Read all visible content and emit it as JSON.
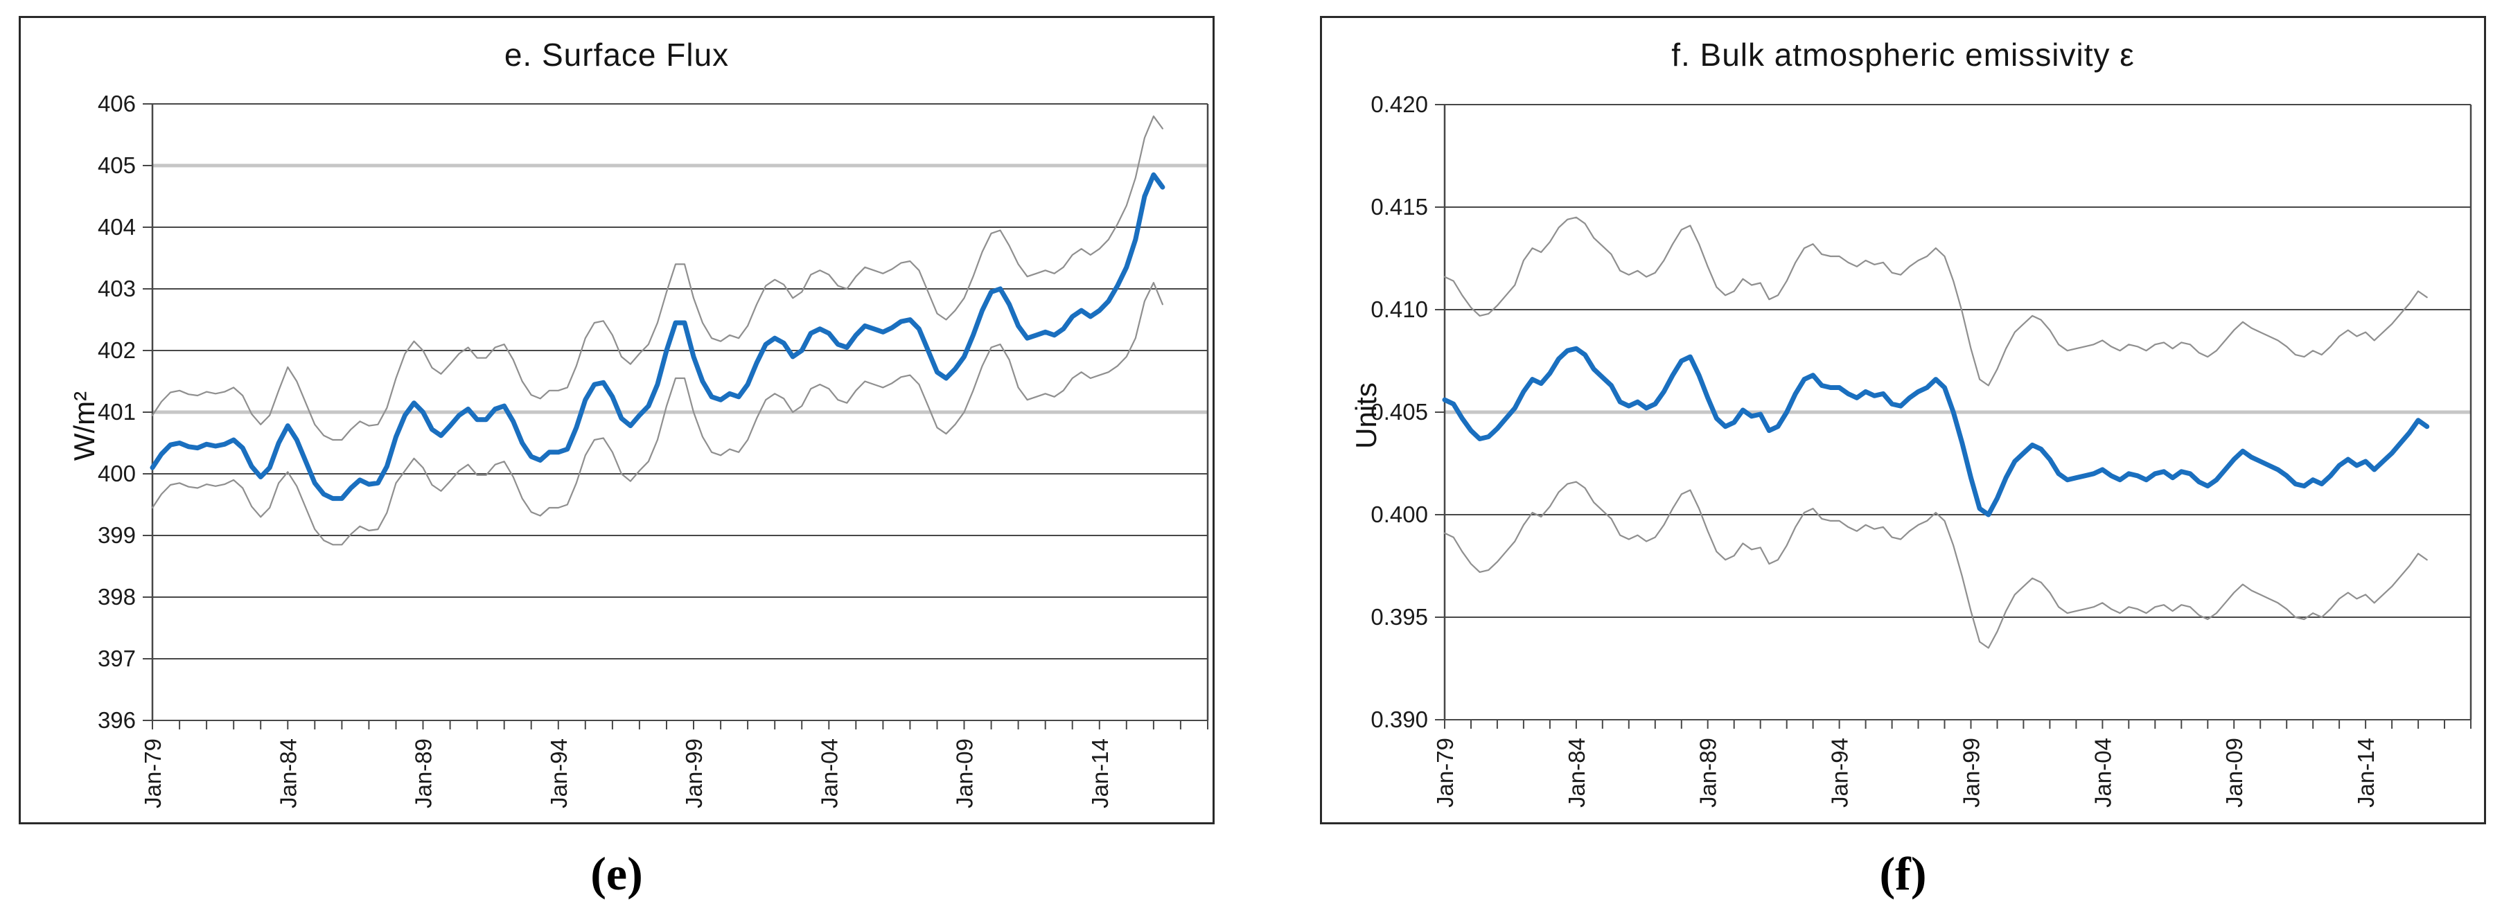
{
  "page": {
    "background": "#ffffff"
  },
  "chart_data": [
    {
      "id": "e",
      "type": "line",
      "title": "e. Surface Flux",
      "ylabel": "W/m²",
      "caption": "(e)",
      "ylim": [
        396,
        406
      ],
      "ytick_step": 1,
      "ytick_labels": [
        "406",
        "405",
        "404",
        "403",
        "402",
        "401",
        "400",
        "399",
        "398",
        "397",
        "396"
      ],
      "emphasis_gridlines": [
        405,
        401
      ],
      "grid_color": "#474747",
      "grid_emphasis_color": "#c6c6c6",
      "xlim": [
        1979,
        2018
      ],
      "minor_tick_every_years": 1,
      "xticks": [
        {
          "year": 1979,
          "label": "Jan-79"
        },
        {
          "year": 1984,
          "label": "Jan-84"
        },
        {
          "year": 1989,
          "label": "Jan-89"
        },
        {
          "year": 1994,
          "label": "Jan-94"
        },
        {
          "year": 1999,
          "label": "Jan-99"
        },
        {
          "year": 2004,
          "label": "Jan-04"
        },
        {
          "year": 2009,
          "label": "Jan-09"
        },
        {
          "year": 2014,
          "label": "Jan-14"
        }
      ],
      "x_start": 1979.0,
      "x_step": 0.33333,
      "series": [
        {
          "name": "upper uncertainty bound",
          "slug": "upper-bound",
          "color": "#8f8f8f",
          "width": 2.2,
          "values": [
            400.95,
            401.17,
            401.32,
            401.35,
            401.29,
            401.27,
            401.33,
            401.3,
            401.33,
            401.4,
            401.27,
            400.97,
            400.8,
            400.95,
            401.35,
            401.73,
            401.5,
            401.15,
            400.8,
            400.62,
            400.55,
            400.55,
            400.72,
            400.85,
            400.78,
            400.8,
            401.07,
            401.55,
            401.95,
            402.15,
            402.0,
            401.72,
            401.62,
            401.78,
            401.95,
            402.05,
            401.88,
            401.88,
            402.05,
            402.1,
            401.85,
            401.5,
            401.28,
            401.22,
            401.35,
            401.35,
            401.4,
            401.75,
            402.2,
            402.45,
            402.48,
            402.25,
            401.9,
            401.78,
            401.95,
            402.1,
            402.45,
            402.95,
            403.4,
            403.4,
            402.85,
            402.45,
            402.2,
            402.15,
            402.25,
            402.2,
            402.4,
            402.75,
            403.05,
            403.15,
            403.07,
            402.85,
            402.95,
            403.23,
            403.3,
            403.23,
            403.05,
            403.0,
            403.2,
            403.35,
            403.3,
            403.25,
            403.32,
            403.42,
            403.45,
            403.3,
            402.95,
            402.6,
            402.5,
            402.65,
            402.85,
            403.2,
            403.6,
            403.9,
            403.95,
            403.7,
            403.4,
            403.2,
            403.25,
            403.3,
            403.25,
            403.35,
            403.55,
            403.65,
            403.55,
            403.65,
            403.8,
            404.05,
            404.35,
            404.8,
            405.45,
            405.8,
            405.6
          ]
        },
        {
          "name": "lower uncertainty bound",
          "slug": "lower-bound",
          "color": "#8f8f8f",
          "width": 2.2,
          "values": [
            399.45,
            399.67,
            399.82,
            399.85,
            399.79,
            399.77,
            399.83,
            399.8,
            399.83,
            399.9,
            399.77,
            399.47,
            399.3,
            399.45,
            399.85,
            400.03,
            399.8,
            399.45,
            399.1,
            398.92,
            398.85,
            398.85,
            399.02,
            399.15,
            399.08,
            399.1,
            399.37,
            399.85,
            400.05,
            400.25,
            400.1,
            399.82,
            399.72,
            399.88,
            400.05,
            400.15,
            399.98,
            399.98,
            400.15,
            400.2,
            399.95,
            399.6,
            399.38,
            399.32,
            399.45,
            399.45,
            399.5,
            399.85,
            400.3,
            400.55,
            400.58,
            400.35,
            400.0,
            399.88,
            400.05,
            400.2,
            400.55,
            401.1,
            401.55,
            401.55,
            401.0,
            400.6,
            400.35,
            400.3,
            400.4,
            400.35,
            400.55,
            400.9,
            401.2,
            401.3,
            401.22,
            401.0,
            401.1,
            401.38,
            401.45,
            401.38,
            401.2,
            401.15,
            401.35,
            401.5,
            401.45,
            401.4,
            401.47,
            401.57,
            401.6,
            401.45,
            401.1,
            400.75,
            400.65,
            400.8,
            401.0,
            401.35,
            401.75,
            402.05,
            402.1,
            401.85,
            401.4,
            401.2,
            401.25,
            401.3,
            401.25,
            401.35,
            401.55,
            401.65,
            401.55,
            401.6,
            401.65,
            401.75,
            401.9,
            402.2,
            402.8,
            403.1,
            402.75
          ]
        },
        {
          "name": "surface flux central estimate",
          "slug": "main",
          "color": "#1a6fbf",
          "width": 7,
          "values": [
            400.1,
            400.32,
            400.47,
            400.5,
            400.44,
            400.42,
            400.48,
            400.45,
            400.48,
            400.55,
            400.42,
            400.12,
            399.95,
            400.1,
            400.5,
            400.78,
            400.55,
            400.2,
            399.85,
            399.67,
            399.6,
            399.6,
            399.77,
            399.9,
            399.83,
            399.85,
            400.12,
            400.6,
            400.95,
            401.15,
            401.0,
            400.72,
            400.62,
            400.78,
            400.95,
            401.05,
            400.88,
            400.88,
            401.05,
            401.1,
            400.85,
            400.5,
            400.28,
            400.22,
            400.35,
            400.35,
            400.4,
            400.75,
            401.2,
            401.45,
            401.48,
            401.25,
            400.9,
            400.78,
            400.95,
            401.1,
            401.45,
            402.0,
            402.45,
            402.45,
            401.9,
            401.5,
            401.25,
            401.2,
            401.3,
            401.25,
            401.45,
            401.8,
            402.1,
            402.2,
            402.12,
            401.9,
            402.0,
            402.28,
            402.35,
            402.28,
            402.1,
            402.05,
            402.25,
            402.4,
            402.35,
            402.3,
            402.37,
            402.47,
            402.5,
            402.35,
            402.0,
            401.65,
            401.55,
            401.7,
            401.9,
            402.25,
            402.65,
            402.95,
            403.0,
            402.75,
            402.4,
            402.2,
            402.25,
            402.3,
            402.25,
            402.35,
            402.55,
            402.65,
            402.55,
            402.65,
            402.8,
            403.05,
            403.35,
            403.8,
            404.5,
            404.85,
            404.65
          ]
        }
      ]
    },
    {
      "id": "f",
      "type": "line",
      "title": "f. Bulk atmospheric emissivity ε",
      "ylabel": "Units",
      "caption": "(f)",
      "ylim": [
        0.39,
        0.42
      ],
      "ytick_step": 0.005,
      "ytick_labels": [
        "0.420",
        "0.415",
        "0.410",
        "0.405",
        "0.400",
        "0.395",
        "0.390"
      ],
      "emphasis_gridlines": [
        0.405
      ],
      "grid_color": "#474747",
      "grid_emphasis_color": "#c6c6c6",
      "xlim": [
        1979,
        2018
      ],
      "minor_tick_every_years": 1,
      "xticks": [
        {
          "year": 1979,
          "label": "Jan-79"
        },
        {
          "year": 1984,
          "label": "Jan-84"
        },
        {
          "year": 1989,
          "label": "Jan-89"
        },
        {
          "year": 1994,
          "label": "Jan-94"
        },
        {
          "year": 1999,
          "label": "Jan-99"
        },
        {
          "year": 2004,
          "label": "Jan-04"
        },
        {
          "year": 2009,
          "label": "Jan-09"
        },
        {
          "year": 2014,
          "label": "Jan-14"
        }
      ],
      "x_start": 1979.0,
      "x_step": 0.33333,
      "series": [
        {
          "name": "upper uncertainty bound",
          "slug": "upper-bound",
          "color": "#8f8f8f",
          "width": 2.2,
          "values": [
            0.4116,
            0.4114,
            0.4107,
            0.4101,
            0.4097,
            0.4098,
            0.4102,
            0.4107,
            0.4112,
            0.4124,
            0.413,
            0.4128,
            0.4133,
            0.414,
            0.4144,
            0.4145,
            0.4142,
            0.4135,
            0.4131,
            0.4127,
            0.4119,
            0.4117,
            0.4119,
            0.4116,
            0.4118,
            0.4124,
            0.4132,
            0.4139,
            0.4141,
            0.4132,
            0.4121,
            0.4111,
            0.4107,
            0.4109,
            0.4115,
            0.4112,
            0.4113,
            0.4105,
            0.4107,
            0.4114,
            0.4123,
            0.413,
            0.4132,
            0.4127,
            0.4126,
            0.4126,
            0.4123,
            0.4121,
            0.4124,
            0.4122,
            0.4123,
            0.4118,
            0.4117,
            0.4121,
            0.4124,
            0.4126,
            0.413,
            0.4126,
            0.4114,
            0.4099,
            0.4081,
            0.4066,
            0.4063,
            0.4071,
            0.4081,
            0.4089,
            0.4093,
            0.4097,
            0.4095,
            0.409,
            0.4083,
            0.408,
            0.4081,
            0.4082,
            0.4083,
            0.4085,
            0.4082,
            0.408,
            0.4083,
            0.4082,
            0.408,
            0.4083,
            0.4084,
            0.4081,
            0.4084,
            0.4083,
            0.4079,
            0.4077,
            0.408,
            0.4085,
            0.409,
            0.4094,
            0.4091,
            0.4089,
            0.4087,
            0.4085,
            0.4082,
            0.4078,
            0.4077,
            0.408,
            0.4078,
            0.4082,
            0.4087,
            0.409,
            0.4087,
            0.4089,
            0.4085,
            0.4089,
            0.4093,
            0.4098,
            0.4103,
            0.4109,
            0.4106
          ]
        },
        {
          "name": "lower uncertainty bound",
          "slug": "lower-bound",
          "color": "#8f8f8f",
          "width": 2.2,
          "values": [
            0.3991,
            0.3989,
            0.3982,
            0.3976,
            0.3972,
            0.3973,
            0.3977,
            0.3982,
            0.3987,
            0.3995,
            0.4001,
            0.3999,
            0.4004,
            0.4011,
            0.4015,
            0.4016,
            0.4013,
            0.4006,
            0.4002,
            0.3998,
            0.399,
            0.3988,
            0.399,
            0.3987,
            0.3989,
            0.3995,
            0.4003,
            0.401,
            0.4012,
            0.4003,
            0.3992,
            0.3982,
            0.3978,
            0.398,
            0.3986,
            0.3983,
            0.3984,
            0.3976,
            0.3978,
            0.3985,
            0.3994,
            0.4001,
            0.4003,
            0.3998,
            0.3997,
            0.3997,
            0.3994,
            0.3992,
            0.3995,
            0.3993,
            0.3994,
            0.3989,
            0.3988,
            0.3992,
            0.3995,
            0.3997,
            0.4001,
            0.3997,
            0.3985,
            0.397,
            0.3953,
            0.3938,
            0.3935,
            0.3943,
            0.3953,
            0.3961,
            0.3965,
            0.3969,
            0.3967,
            0.3962,
            0.3955,
            0.3952,
            0.3953,
            0.3954,
            0.3955,
            0.3957,
            0.3954,
            0.3952,
            0.3955,
            0.3954,
            0.3952,
            0.3955,
            0.3956,
            0.3953,
            0.3956,
            0.3955,
            0.3951,
            0.3949,
            0.3952,
            0.3957,
            0.3962,
            0.3966,
            0.3963,
            0.3961,
            0.3959,
            0.3957,
            0.3954,
            0.395,
            0.3949,
            0.3952,
            0.395,
            0.3954,
            0.3959,
            0.3962,
            0.3959,
            0.3961,
            0.3957,
            0.3961,
            0.3965,
            0.397,
            0.3975,
            0.3981,
            0.3978
          ]
        },
        {
          "name": "bulk atmospheric emissivity central estimate",
          "slug": "main",
          "color": "#1a6fbf",
          "width": 7,
          "values": [
            0.4056,
            0.4054,
            0.4047,
            0.4041,
            0.4037,
            0.4038,
            0.4042,
            0.4047,
            0.4052,
            0.406,
            0.4066,
            0.4064,
            0.4069,
            0.4076,
            0.408,
            0.4081,
            0.4078,
            0.4071,
            0.4067,
            0.4063,
            0.4055,
            0.4053,
            0.4055,
            0.4052,
            0.4054,
            0.406,
            0.4068,
            0.4075,
            0.4077,
            0.4068,
            0.4057,
            0.4047,
            0.4043,
            0.4045,
            0.4051,
            0.4048,
            0.4049,
            0.4041,
            0.4043,
            0.405,
            0.4059,
            0.4066,
            0.4068,
            0.4063,
            0.4062,
            0.4062,
            0.4059,
            0.4057,
            0.406,
            0.4058,
            0.4059,
            0.4054,
            0.4053,
            0.4057,
            0.406,
            0.4062,
            0.4066,
            0.4062,
            0.405,
            0.4035,
            0.4018,
            0.4003,
            0.4,
            0.4008,
            0.4018,
            0.4026,
            0.403,
            0.4034,
            0.4032,
            0.4027,
            0.402,
            0.4017,
            0.4018,
            0.4019,
            0.402,
            0.4022,
            0.4019,
            0.4017,
            0.402,
            0.4019,
            0.4017,
            0.402,
            0.4021,
            0.4018,
            0.4021,
            0.402,
            0.4016,
            0.4014,
            0.4017,
            0.4022,
            0.4027,
            0.4031,
            0.4028,
            0.4026,
            0.4024,
            0.4022,
            0.4019,
            0.4015,
            0.4014,
            0.4017,
            0.4015,
            0.4019,
            0.4024,
            0.4027,
            0.4024,
            0.4026,
            0.4022,
            0.4026,
            0.403,
            0.4035,
            0.404,
            0.4046,
            0.4043
          ]
        }
      ]
    }
  ]
}
